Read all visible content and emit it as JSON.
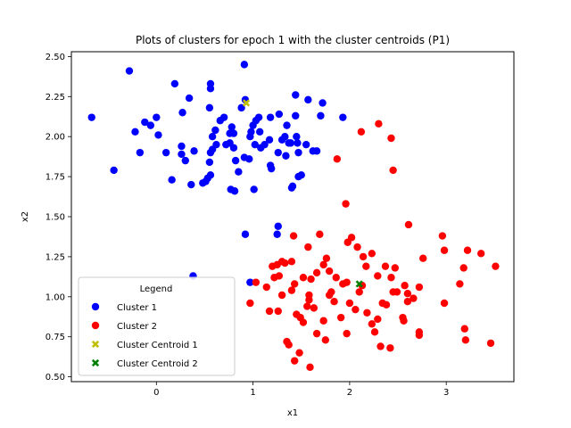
{
  "chart_data": {
    "type": "scatter",
    "title": "Plots of clusters for epoch 1 with the cluster centroids (P1)",
    "xlabel": "x1",
    "ylabel": "x2",
    "xlim": [
      -0.88,
      3.7
    ],
    "ylim": [
      0.47,
      2.53
    ],
    "xticks": [
      0,
      1,
      2,
      3
    ],
    "yticks": [
      0.5,
      0.75,
      1.0,
      1.25,
      1.5,
      1.75,
      2.0,
      2.25,
      2.5
    ],
    "ytick_labels": [
      "0.50",
      "0.75",
      "1.00",
      "1.25",
      "1.50",
      "1.75",
      "2.00",
      "2.25",
      "2.50"
    ],
    "grid": false,
    "legend": {
      "title": "Legend",
      "placement": "lower-left",
      "entries": [
        "Cluster 1",
        "Cluster 2",
        "Cluster Centroid 1",
        "Cluster Centroid 2"
      ]
    },
    "series": [
      {
        "name": "Cluster 1",
        "color": "#0000ff",
        "marker": "circle",
        "points": [
          [
            -0.28,
            2.41
          ],
          [
            -0.67,
            2.12
          ],
          [
            -0.22,
            2.03
          ],
          [
            -0.12,
            2.09
          ],
          [
            -0.06,
            2.07
          ],
          [
            0.0,
            2.12
          ],
          [
            0.02,
            2.01
          ],
          [
            -0.44,
            1.79
          ],
          [
            -0.17,
            1.9
          ],
          [
            0.1,
            1.9
          ],
          [
            0.16,
            1.73
          ],
          [
            0.19,
            2.33
          ],
          [
            0.27,
            2.15
          ],
          [
            0.34,
            2.24
          ],
          [
            0.26,
            1.94
          ],
          [
            0.26,
            1.89
          ],
          [
            0.3,
            1.85
          ],
          [
            0.39,
            1.91
          ],
          [
            0.36,
            1.7
          ],
          [
            0.48,
            1.71
          ],
          [
            0.51,
            1.72
          ],
          [
            0.53,
            1.74
          ],
          [
            0.56,
            1.76
          ],
          [
            0.55,
            1.84
          ],
          [
            0.56,
            1.9
          ],
          [
            0.58,
            1.92
          ],
          [
            0.58,
            2.0
          ],
          [
            0.62,
            1.95
          ],
          [
            0.55,
            2.18
          ],
          [
            0.56,
            2.3
          ],
          [
            0.56,
            2.33
          ],
          [
            0.61,
            2.04
          ],
          [
            0.66,
            2.1
          ],
          [
            0.7,
            2.12
          ],
          [
            0.72,
            1.95
          ],
          [
            0.76,
            1.96
          ],
          [
            0.76,
            2.02
          ],
          [
            0.78,
            2.06
          ],
          [
            0.8,
            2.02
          ],
          [
            0.8,
            1.93
          ],
          [
            0.82,
            1.85
          ],
          [
            0.77,
            1.67
          ],
          [
            0.81,
            1.66
          ],
          [
            0.85,
            1.78
          ],
          [
            0.88,
            2.18
          ],
          [
            0.92,
            2.23
          ],
          [
            0.91,
            2.45
          ],
          [
            0.91,
            1.87
          ],
          [
            0.96,
            1.86
          ],
          [
            0.97,
            2.0
          ],
          [
            0.98,
            2.03
          ],
          [
            1.0,
            2.07
          ],
          [
            1.03,
            2.1
          ],
          [
            1.06,
            2.12
          ],
          [
            1.02,
            1.95
          ],
          [
            1.08,
            1.93
          ],
          [
            1.07,
            2.03
          ],
          [
            1.01,
            1.67
          ],
          [
            1.12,
            1.95
          ],
          [
            1.17,
            1.98
          ],
          [
            1.18,
            1.82
          ],
          [
            1.18,
            2.12
          ],
          [
            1.19,
            1.8
          ],
          [
            1.26,
            1.9
          ],
          [
            1.27,
            2.14
          ],
          [
            1.3,
            1.98
          ],
          [
            1.33,
            2.0
          ],
          [
            1.35,
            2.07
          ],
          [
            1.34,
            1.88
          ],
          [
            1.37,
            1.96
          ],
          [
            1.39,
            1.96
          ],
          [
            1.41,
            1.69
          ],
          [
            1.4,
            1.68
          ],
          [
            1.44,
            2.26
          ],
          [
            1.44,
            2.13
          ],
          [
            1.45,
            2.0
          ],
          [
            1.46,
            1.96
          ],
          [
            1.47,
            1.9
          ],
          [
            1.5,
            1.76
          ],
          [
            1.47,
            1.75
          ],
          [
            1.55,
            1.95
          ],
          [
            1.57,
            2.23
          ],
          [
            1.62,
            1.91
          ],
          [
            1.66,
            1.91
          ],
          [
            1.7,
            2.13
          ],
          [
            1.72,
            2.21
          ],
          [
            1.93,
            2.12
          ],
          [
            1.26,
            1.44
          ],
          [
            1.25,
            1.39
          ],
          [
            0.92,
            1.39
          ],
          [
            0.97,
            1.09
          ],
          [
            0.38,
            1.13
          ]
        ]
      },
      {
        "name": "Cluster 2",
        "color": "#ff0000",
        "marker": "circle",
        "points": [
          [
            1.87,
            1.86
          ],
          [
            2.12,
            2.03
          ],
          [
            2.3,
            2.08
          ],
          [
            2.43,
            1.99
          ],
          [
            2.45,
            1.79
          ],
          [
            2.61,
            1.45
          ],
          [
            1.96,
            1.58
          ],
          [
            1.69,
            1.39
          ],
          [
            1.57,
            1.31
          ],
          [
            1.42,
            1.38
          ],
          [
            1.33,
            1.21
          ],
          [
            1.25,
            1.2
          ],
          [
            1.2,
            1.19
          ],
          [
            1.22,
            1.12
          ],
          [
            1.27,
            1.13
          ],
          [
            1.3,
            1.22
          ],
          [
            1.4,
            1.22
          ],
          [
            1.43,
            1.08
          ],
          [
            1.52,
            1.12
          ],
          [
            1.6,
            1.11
          ],
          [
            1.66,
            1.15
          ],
          [
            1.73,
            1.2
          ],
          [
            1.76,
            1.24
          ],
          [
            1.79,
            1.16
          ],
          [
            1.86,
            1.12
          ],
          [
            1.93,
            1.08
          ],
          [
            1.97,
            1.09
          ],
          [
            1.98,
            1.34
          ],
          [
            2.02,
            1.37
          ],
          [
            2.08,
            1.31
          ],
          [
            2.14,
            1.25
          ],
          [
            2.17,
            1.19
          ],
          [
            2.23,
            1.27
          ],
          [
            2.29,
            1.13
          ],
          [
            2.37,
            1.19
          ],
          [
            2.43,
            1.12
          ],
          [
            2.47,
            1.18
          ],
          [
            2.49,
            1.03
          ],
          [
            2.57,
            1.07
          ],
          [
            2.6,
            1.02
          ],
          [
            2.66,
            0.99
          ],
          [
            2.72,
            1.06
          ],
          [
            2.76,
            1.24
          ],
          [
            2.96,
            1.38
          ],
          [
            2.98,
            1.29
          ],
          [
            3.14,
            1.08
          ],
          [
            3.18,
            1.18
          ],
          [
            3.22,
            1.29
          ],
          [
            3.36,
            1.27
          ],
          [
            3.51,
            1.19
          ],
          [
            1.03,
            1.09
          ],
          [
            0.97,
            0.96
          ],
          [
            1.14,
            1.06
          ],
          [
            1.17,
            0.91
          ],
          [
            1.26,
            0.91
          ],
          [
            1.3,
            1.01
          ],
          [
            1.4,
            1.04
          ],
          [
            1.45,
            0.89
          ],
          [
            1.49,
            0.87
          ],
          [
            1.52,
            0.84
          ],
          [
            1.56,
            0.94
          ],
          [
            1.58,
            0.98
          ],
          [
            1.58,
            1.01
          ],
          [
            1.63,
            0.93
          ],
          [
            1.66,
            0.77
          ],
          [
            1.73,
            0.85
          ],
          [
            1.75,
            0.73
          ],
          [
            1.79,
            1.01
          ],
          [
            1.81,
            1.03
          ],
          [
            1.84,
            0.97
          ],
          [
            1.91,
            0.87
          ],
          [
            1.97,
            0.77
          ],
          [
            2.0,
            0.96
          ],
          [
            2.06,
            0.92
          ],
          [
            2.1,
            1.03
          ],
          [
            2.13,
            1.07
          ],
          [
            2.18,
            0.9
          ],
          [
            2.23,
            0.83
          ],
          [
            2.26,
            0.78
          ],
          [
            2.29,
            0.86
          ],
          [
            2.32,
            0.69
          ],
          [
            2.34,
            0.96
          ],
          [
            2.38,
            0.95
          ],
          [
            2.42,
            0.68
          ],
          [
            2.45,
            1.03
          ],
          [
            2.55,
            0.87
          ],
          [
            2.56,
            0.85
          ],
          [
            2.6,
            0.97
          ],
          [
            2.72,
            0.78
          ],
          [
            2.72,
            0.76
          ],
          [
            2.98,
            0.96
          ],
          [
            3.19,
            0.8
          ],
          [
            3.2,
            0.73
          ],
          [
            3.46,
            0.71
          ],
          [
            1.35,
            0.72
          ],
          [
            1.37,
            0.7
          ],
          [
            1.43,
            0.6
          ],
          [
            1.48,
            0.65
          ],
          [
            1.59,
            0.56
          ]
        ]
      },
      {
        "name": "Cluster Centroid 1",
        "color": "#bfbf00",
        "marker": "x",
        "points": [
          [
            0.93,
            2.21
          ]
        ]
      },
      {
        "name": "Cluster Centroid 2",
        "color": "#008000",
        "marker": "x",
        "points": [
          [
            2.1,
            1.08
          ]
        ]
      }
    ]
  }
}
